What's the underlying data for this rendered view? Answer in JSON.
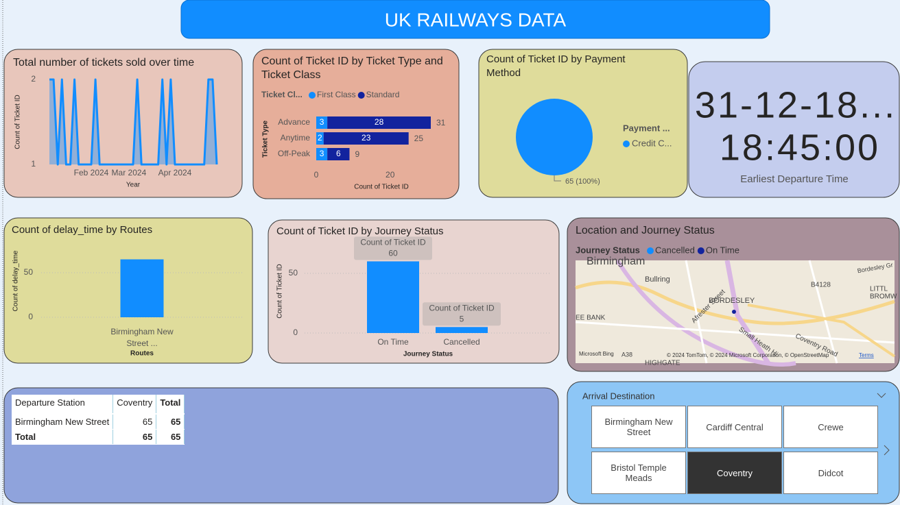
{
  "header": {
    "title": "UK RAILWAYS DATA"
  },
  "chart_data": [
    {
      "type": "area",
      "title": "Total number of tickets sold over time",
      "x_label": "Year",
      "y_label": "Count of Ticket ID",
      "categories": [
        null,
        null,
        null,
        null,
        null,
        null,
        null,
        null,
        null,
        null,
        "Feb 2024",
        null,
        null,
        null,
        null,
        null,
        null,
        null,
        null,
        "Mar 2024",
        null,
        null,
        null,
        null,
        null,
        null,
        null,
        null,
        null,
        null,
        "Apr 2024",
        null,
        null,
        null,
        null,
        null,
        null,
        null,
        null,
        null,
        null
      ],
      "values": [
        2,
        2,
        1,
        2,
        1,
        1,
        2,
        1,
        1,
        1,
        1,
        2,
        1,
        1,
        1,
        1,
        1,
        1,
        1,
        1,
        1,
        2,
        1,
        1,
        1,
        1,
        1,
        2,
        1,
        2,
        1,
        1,
        1,
        1,
        1,
        1,
        1,
        1,
        2,
        2,
        1
      ],
      "color": "#118dff",
      "ylim": [
        1,
        2
      ],
      "yticks": [
        1,
        2
      ]
    },
    {
      "type": "hbar",
      "title": "Count of Ticket ID by Ticket Type and Ticket Class",
      "legend_title": "Ticket Cl...",
      "y_label": "Ticket Type",
      "x_label": "Count of Ticket ID",
      "categories": [
        "Advance",
        "Anytime",
        "Off-Peak"
      ],
      "series": [
        {
          "name": "First Class",
          "color": "#118dff",
          "values": [
            3,
            2,
            3
          ]
        },
        {
          "name": "Standard",
          "color": "#12239e",
          "values": [
            28,
            23,
            6
          ]
        }
      ],
      "totals": [
        31,
        25,
        9
      ],
      "xlim": [
        0,
        31
      ],
      "xticks": [
        0,
        20
      ]
    },
    {
      "type": "pie",
      "title": "Count of Ticket ID by Payment Method",
      "legend_title": "Payment ...",
      "categories": [
        "Credit C..."
      ],
      "values": [
        65
      ],
      "value_labels": [
        "65 (100%)"
      ],
      "colors": [
        "#118dff"
      ]
    },
    {
      "type": "bar",
      "title": "Count of delay_time by Routes",
      "x_label": "Routes",
      "y_label": "Count of delay_time",
      "categories": [
        "Birmingham New Street ..."
      ],
      "values": [
        65
      ],
      "color": "#118dff",
      "ylim": [
        0,
        80
      ],
      "yticks": [
        0,
        50
      ],
      "grid": true
    },
    {
      "type": "bar",
      "title": "Count of Ticket ID by Journey Status",
      "x_label": "Journey Status",
      "y_label": "Count of Ticket ID",
      "categories": [
        "On Time",
        "Cancelled"
      ],
      "values": [
        60,
        5
      ],
      "color": "#118dff",
      "ylim": [
        0,
        70
      ],
      "yticks": [
        0,
        50
      ],
      "grid": true,
      "tooltip_label": "Count of Ticket ID"
    }
  ],
  "card": {
    "value_lines": [
      "31-12-18...",
      "18:45:00"
    ],
    "label": "Earliest Departure Time"
  },
  "map": {
    "title": "Location and Journey Status",
    "legend_title": "Journey Status",
    "legend": [
      {
        "name": "Cancelled",
        "color": "#118dff"
      },
      {
        "name": "On Time",
        "color": "#12239e"
      }
    ],
    "place_labels": [
      "Birmingham",
      "Bullring",
      "B4128",
      "Bordesley Gr",
      "LITTL",
      "BROMW",
      "BORDESLEY",
      "EE BANK",
      "Afrester Street",
      "Small Heath Hi",
      "Coventry Road",
      "A38",
      "HIGHGATE"
    ],
    "provider": "Microsoft Bing",
    "attribution": "© 2024 TomTom, © 2024 Microsoft Corporation, © OpenStreetMap",
    "terms": "Terms"
  },
  "table": {
    "columns": [
      "Departure Station",
      "Coventry",
      "Total"
    ],
    "rows": [
      [
        "Birmingham New Street",
        65,
        65
      ],
      [
        "Total",
        65,
        65
      ]
    ]
  },
  "slicer": {
    "title": "Arrival Destination",
    "items": [
      "Birmingham New Street",
      "Cardiff Central",
      "Crewe",
      "Bristol Temple Meads",
      "Coventry",
      "Didcot"
    ],
    "selected": 4
  }
}
